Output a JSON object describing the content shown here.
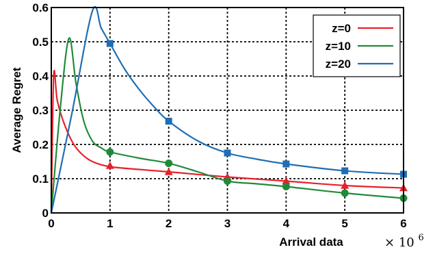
{
  "chart_data": {
    "type": "line",
    "title": "",
    "xlabel": "Arrival data",
    "ylabel": "Average Regret",
    "x_multiplier": {
      "times": "×",
      "base": "10",
      "exponent": "6"
    },
    "xlim": [
      0,
      6
    ],
    "ylim": [
      0,
      0.6
    ],
    "xticks": [
      0,
      1,
      2,
      3,
      4,
      5,
      6
    ],
    "xtick_labels": [
      "0",
      "1",
      "2",
      "3",
      "4",
      "5",
      "6"
    ],
    "yticks": [
      0,
      0.1,
      0.2,
      0.3,
      0.4,
      0.5,
      0.6
    ],
    "ytick_labels": [
      "0",
      "0.1",
      "0.2",
      "0.3",
      "0.4",
      "0.5",
      "0.6"
    ],
    "grid": true,
    "legend_position": "top-right",
    "series": [
      {
        "name": "z=0",
        "color": "#e8202a",
        "marker": "triangle",
        "curve": [
          [
            0,
            0
          ],
          [
            0.04,
            0.4
          ],
          [
            0.1,
            0.33
          ],
          [
            0.2,
            0.27
          ],
          [
            0.35,
            0.21
          ],
          [
            0.5,
            0.175
          ],
          [
            0.7,
            0.15
          ],
          [
            1.0,
            0.135
          ],
          [
            1.5,
            0.127
          ],
          [
            2.0,
            0.12
          ],
          [
            3.0,
            0.105
          ],
          [
            4.0,
            0.093
          ],
          [
            5.0,
            0.08
          ],
          [
            6.0,
            0.073
          ]
        ],
        "markers": [
          [
            1,
            0.138
          ],
          [
            2,
            0.12
          ],
          [
            3,
            0.105
          ],
          [
            4,
            0.093
          ],
          [
            5,
            0.08
          ],
          [
            6,
            0.073
          ]
        ]
      },
      {
        "name": "z=10",
        "color": "#218a3a",
        "marker": "circle",
        "curve": [
          [
            0,
            0
          ],
          [
            0.15,
            0.3
          ],
          [
            0.3,
            0.51
          ],
          [
            0.42,
            0.38
          ],
          [
            0.55,
            0.27
          ],
          [
            0.7,
            0.21
          ],
          [
            0.85,
            0.19
          ],
          [
            1.0,
            0.178
          ],
          [
            1.5,
            0.16
          ],
          [
            2.0,
            0.145
          ],
          [
            2.5,
            0.12
          ],
          [
            3.0,
            0.093
          ],
          [
            3.5,
            0.085
          ],
          [
            4.0,
            0.077
          ],
          [
            5.0,
            0.058
          ],
          [
            6.0,
            0.043
          ]
        ],
        "markers": [
          [
            1,
            0.178
          ],
          [
            2,
            0.145
          ],
          [
            3,
            0.093
          ],
          [
            4,
            0.077
          ],
          [
            5,
            0.058
          ],
          [
            6,
            0.043
          ]
        ]
      },
      {
        "name": "z=20",
        "color": "#1f6db4",
        "marker": "square",
        "curve": [
          [
            0,
            0
          ],
          [
            0.35,
            0.29
          ],
          [
            0.7,
            0.59
          ],
          [
            0.85,
            0.54
          ],
          [
            1.0,
            0.495
          ],
          [
            1.25,
            0.42
          ],
          [
            1.5,
            0.36
          ],
          [
            1.75,
            0.31
          ],
          [
            2.0,
            0.268
          ],
          [
            2.5,
            0.21
          ],
          [
            3.0,
            0.175
          ],
          [
            3.5,
            0.157
          ],
          [
            4.0,
            0.143
          ],
          [
            5.0,
            0.123
          ],
          [
            6.0,
            0.113
          ]
        ],
        "markers": [
          [
            1,
            0.495
          ],
          [
            2,
            0.268
          ],
          [
            3,
            0.175
          ],
          [
            4,
            0.143
          ],
          [
            5,
            0.123
          ],
          [
            6,
            0.113
          ]
        ]
      }
    ]
  }
}
